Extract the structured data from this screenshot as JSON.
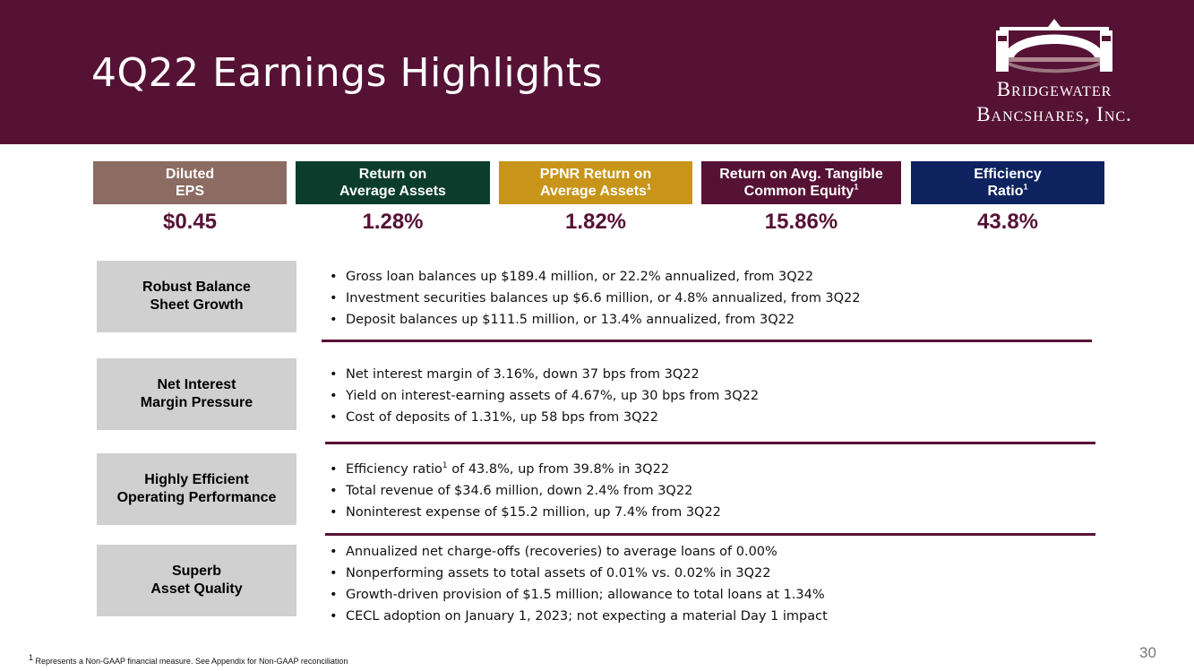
{
  "header": {
    "title": "4Q22 Earnings Highlights"
  },
  "logo": {
    "line1": "Bridgewater",
    "line2": "Bancshares, Inc."
  },
  "kpis": [
    {
      "line1": "Diluted",
      "line2": "EPS",
      "sup": "",
      "value": "$0.45",
      "color": "#8c6b62"
    },
    {
      "line1": "Return on",
      "line2": "Average Assets",
      "sup": "",
      "value": "1.28%",
      "color": "#0c3d2c"
    },
    {
      "line1": "PPNR Return on",
      "line2": "Average Assets",
      "sup": "1",
      "value": "1.82%",
      "color": "#c8951a"
    },
    {
      "line1": "Return on Avg. Tangible",
      "line2": "Common Equity",
      "sup": "1",
      "value": "15.86%",
      "color": "#561234"
    },
    {
      "line1": "Efficiency",
      "line2": "Ratio",
      "sup": "1",
      "value": "43.8%",
      "color": "#0e2360"
    }
  ],
  "sections": [
    {
      "label1": "Robust Balance",
      "label2": "Sheet Growth",
      "bullets": [
        "Gross loan balances up $189.4 million, or 22.2% annualized, from 3Q22",
        "Investment securities balances up $6.6 million, or 4.8% annualized, from 3Q22",
        "Deposit balances up $111.5 million, or 13.4% annualized, from 3Q22"
      ]
    },
    {
      "label1": "Net Interest",
      "label2": "Margin Pressure",
      "bullets": [
        "Net interest margin of 3.16%, down 37 bps from 3Q22",
        "Yield on interest-earning assets of 4.67%, up 30 bps from 3Q22",
        "Cost of deposits of 1.31%, up 58 bps from 3Q22"
      ]
    },
    {
      "label1": "Highly Efficient",
      "label2": "Operating Performance",
      "bullets": [
        {
          "pre": "Efficiency ratio",
          "sup": "1",
          "post": " of 43.8%, up from 39.8% in 3Q22"
        },
        "Total revenue of $34.6 million, down 2.4% from 3Q22",
        "Noninterest expense of $15.2 million, up 7.4% from 3Q22"
      ]
    },
    {
      "label1": "Superb",
      "label2": "Asset Quality",
      "bullets": [
        "Annualized net charge-offs (recoveries) to average loans of 0.00%",
        "Nonperforming assets to total assets of 0.01% vs. 0.02% in 3Q22",
        "Growth-driven provision of $1.5 million; allowance to total loans at 1.34%",
        "CECL adoption on January 1, 2023; not expecting a material Day 1 impact"
      ]
    }
  ],
  "footnote": {
    "sup": "1",
    "text": " Represents a Non-GAAP financial measure. See Appendix for Non-GAAP reconciliation"
  },
  "page_number": "30",
  "colors": {
    "brand": "#561234",
    "section_box": "#d0d0d0"
  }
}
